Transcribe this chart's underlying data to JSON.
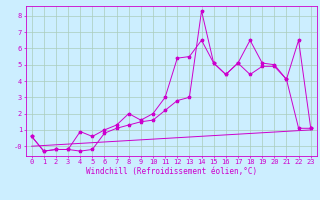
{
  "title": "",
  "xlabel": "Windchill (Refroidissement éolien,°C)",
  "bg_color": "#cceeff",
  "line_color": "#cc00cc",
  "grid_color": "#aaccbb",
  "xlim": [
    -0.5,
    23.5
  ],
  "ylim": [
    -0.6,
    8.6
  ],
  "xticks": [
    0,
    1,
    2,
    3,
    4,
    5,
    6,
    7,
    8,
    9,
    10,
    11,
    12,
    13,
    14,
    15,
    16,
    17,
    18,
    19,
    20,
    21,
    22,
    23
  ],
  "yticks": [
    0,
    1,
    2,
    3,
    4,
    5,
    6,
    7,
    8
  ],
  "ytick_labels": [
    "-0",
    "1",
    "2",
    "3",
    "4",
    "5",
    "6",
    "7",
    "8"
  ],
  "line1_x": [
    0,
    1,
    2,
    3,
    4,
    5,
    6,
    7,
    8,
    9,
    10,
    11,
    12,
    13,
    14,
    15,
    16,
    17,
    18,
    19,
    20,
    21,
    22,
    23
  ],
  "line1_y": [
    0.6,
    -0.3,
    -0.2,
    -0.2,
    -0.3,
    -0.2,
    0.8,
    1.1,
    1.3,
    1.5,
    1.6,
    2.2,
    2.8,
    3.0,
    8.3,
    5.1,
    4.4,
    5.1,
    4.4,
    4.9,
    4.9,
    4.1,
    1.1,
    1.1
  ],
  "line2_x": [
    0,
    1,
    2,
    3,
    4,
    5,
    6,
    7,
    8,
    9,
    10,
    11,
    12,
    13,
    14,
    15,
    16,
    17,
    18,
    19,
    20,
    21,
    22,
    23
  ],
  "line2_y": [
    0.6,
    -0.3,
    -0.2,
    -0.2,
    0.9,
    0.6,
    1.0,
    1.3,
    2.0,
    1.6,
    2.0,
    3.0,
    5.4,
    5.5,
    6.5,
    5.1,
    4.4,
    5.1,
    6.5,
    5.1,
    5.0,
    4.1,
    6.5,
    1.1
  ],
  "line3_x": [
    0,
    23
  ],
  "line3_y": [
    0.0,
    1.0
  ],
  "marker": "*",
  "marker_size": 2.5,
  "linewidth": 0.7,
  "xlabel_fontsize": 5.5,
  "tick_fontsize": 5
}
